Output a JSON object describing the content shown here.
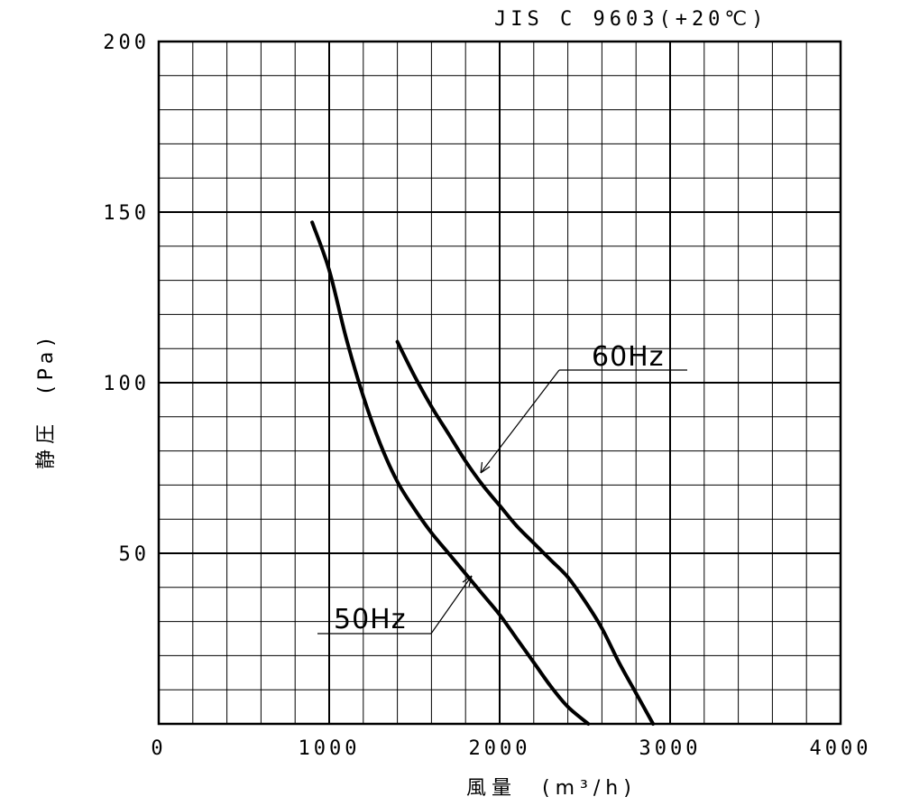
{
  "chart_data": {
    "type": "line",
    "title": "",
    "standard_note": "JIS C 9603(+20℃)",
    "xlabel": "風量　(m³/h)",
    "ylabel": "静圧　(Pa)",
    "xlim": [
      0,
      4000
    ],
    "ylim": [
      0,
      200
    ],
    "x_ticks": [
      "0",
      "1000",
      "2000",
      "3000",
      "4000"
    ],
    "y_ticks": [
      "50",
      "100",
      "150",
      "200"
    ],
    "grid": true,
    "series": [
      {
        "name": "50Hz",
        "points": [
          [
            900,
            147
          ],
          [
            1000,
            133
          ],
          [
            1100,
            113
          ],
          [
            1200,
            96
          ],
          [
            1300,
            82
          ],
          [
            1400,
            71
          ],
          [
            1500,
            63
          ],
          [
            1600,
            56
          ],
          [
            1700,
            50
          ],
          [
            1800,
            44
          ],
          [
            1900,
            38
          ],
          [
            2000,
            32
          ],
          [
            2100,
            25
          ],
          [
            2200,
            18
          ],
          [
            2300,
            11
          ],
          [
            2400,
            5
          ],
          [
            2520,
            0
          ]
        ]
      },
      {
        "name": "60Hz",
        "points": [
          [
            1400,
            112
          ],
          [
            1500,
            102
          ],
          [
            1600,
            93
          ],
          [
            1700,
            85
          ],
          [
            1800,
            77
          ],
          [
            1900,
            70
          ],
          [
            2000,
            64
          ],
          [
            2100,
            58
          ],
          [
            2200,
            53
          ],
          [
            2300,
            48
          ],
          [
            2400,
            43
          ],
          [
            2500,
            36
          ],
          [
            2600,
            28
          ],
          [
            2700,
            18
          ],
          [
            2800,
            9
          ],
          [
            2900,
            0
          ]
        ]
      }
    ]
  }
}
